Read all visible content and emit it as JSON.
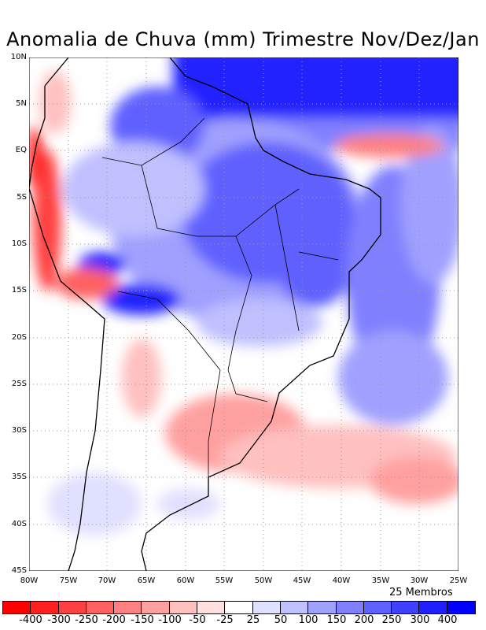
{
  "title": "Anomalia de Chuva (mm) Trimestre Nov/Dez/Jan",
  "lat_labels": [
    "10N",
    "5N",
    "EQ",
    "5S",
    "10S",
    "15S",
    "20S",
    "25S",
    "30S",
    "35S",
    "40S",
    "45S"
  ],
  "lon_labels": [
    "80W",
    "75W",
    "70W",
    "65W",
    "60W",
    "55W",
    "50W",
    "45W",
    "40W",
    "35W",
    "30W",
    "25W"
  ],
  "members": "25 Membros",
  "colorbar": {
    "colors": [
      "#ff0000",
      "#ff2020",
      "#ff4040",
      "#ff6060",
      "#ff8080",
      "#ffa0a0",
      "#ffc0c0",
      "#ffe0e0",
      "#ffffff",
      "#e0e0ff",
      "#c0c0ff",
      "#a0a0ff",
      "#8080ff",
      "#6060ff",
      "#4040ff",
      "#2020ff",
      "#0000ff"
    ],
    "labels": [
      "-400",
      "-300",
      "-250",
      "-200",
      "-150",
      "-100",
      "-50",
      "-25",
      "25",
      "50",
      "100",
      "150",
      "200",
      "250",
      "300",
      "400"
    ]
  }
}
